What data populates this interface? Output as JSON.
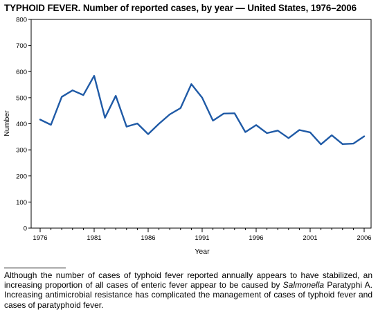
{
  "chart_data": {
    "type": "line",
    "title": "TYPHOID FEVER. Number of reported cases, by year — United States, 1976–2006",
    "xlabel": "Year",
    "ylabel": "Number",
    "xlim": [
      1976,
      2006
    ],
    "ylim": [
      0,
      800
    ],
    "xticks": [
      1976,
      1981,
      1986,
      1991,
      1996,
      2001,
      2006
    ],
    "yticks": [
      0,
      100,
      200,
      300,
      400,
      500,
      600,
      700,
      800
    ],
    "grid": false,
    "series": [
      {
        "x": [
          1976,
          1977,
          1978,
          1979,
          1980,
          1981,
          1982,
          1983,
          1984,
          1985,
          1986,
          1987,
          1988,
          1989,
          1990,
          1991,
          1992,
          1993,
          1994,
          1995,
          1996,
          1997,
          1998,
          1999,
          2000,
          2001,
          2002,
          2003,
          2004,
          2005,
          2006
        ],
        "values": [
          416,
          396,
          503,
          528,
          510,
          584,
          423,
          507,
          389,
          401,
          360,
          400,
          436,
          460,
          552,
          500,
          412,
          439,
          440,
          368,
          395,
          364,
          374,
          345,
          376,
          367,
          321,
          356,
          322,
          324,
          352
        ],
        "color": "#1f5aa6"
      }
    ]
  },
  "footnote": {
    "before": "Although the number of cases of typhoid fever reported annually appears to have stabilized, an increasing proportion of all cases of enteric fever appear to be caused by ",
    "italic": "Salmonella",
    "after": " Paratyphi A. Increasing antimicrobial resistance has complicated the management of cases of typhoid fever and cases of paratyphoid fever."
  }
}
